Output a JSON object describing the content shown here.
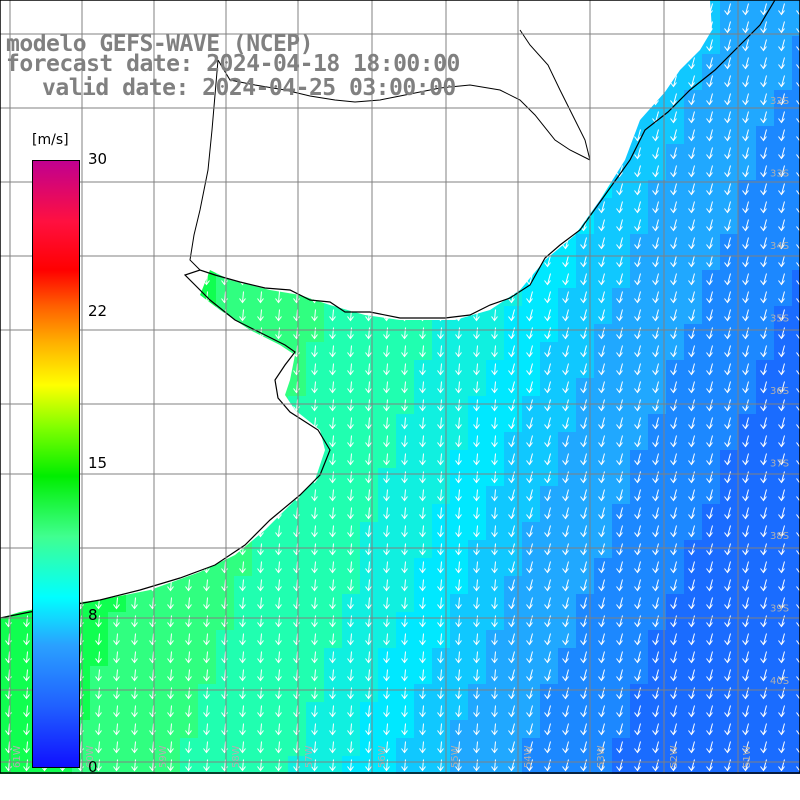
{
  "title": {
    "line1": "modelo GEFS-WAVE (NCEP)",
    "line2": "forecast date: 2024-04-18 18:00:00",
    "line3": "valid date: 2024-04-25 03:00:00"
  },
  "colorbar": {
    "unit": "[m/s]",
    "ticks": [
      "30",
      "22",
      "15",
      "8",
      "0"
    ],
    "range": [
      0,
      30
    ],
    "colors": [
      "#1010ff",
      "#2aa0ff",
      "#00ffff",
      "#00ee00",
      "#ffff00",
      "#ff6000",
      "#ff0000",
      "#c00090"
    ]
  },
  "grid": {
    "lat_labels": [
      "32S",
      "33S",
      "34S",
      "35S",
      "36S",
      "37S",
      "38S",
      "39S",
      "40S"
    ],
    "lon_labels": [
      "61W",
      "60W",
      "59W",
      "58W",
      "57W",
      "56W",
      "55W",
      "54W",
      "53W",
      "52W",
      "51W",
      "50W"
    ]
  },
  "map": {
    "land_color": "#ffffff",
    "grid_color": "#808080",
    "arrow_color": "#ffffff",
    "wind_direction": "north-to-south"
  }
}
